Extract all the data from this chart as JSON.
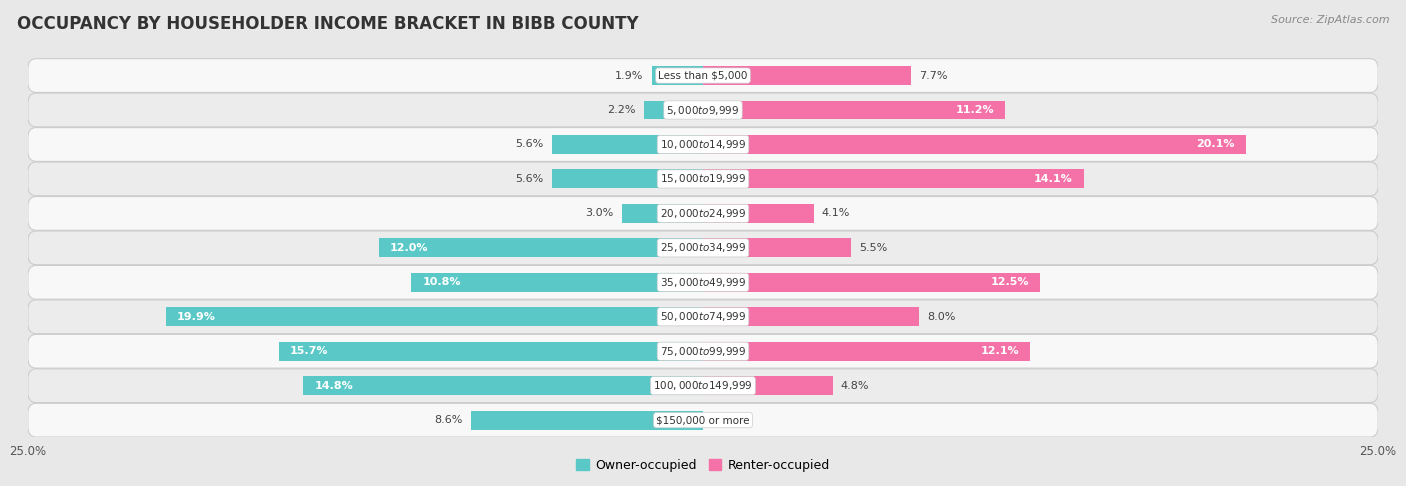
{
  "title": "OCCUPANCY BY HOUSEHOLDER INCOME BRACKET IN BIBB COUNTY",
  "source": "Source: ZipAtlas.com",
  "categories": [
    "Less than $5,000",
    "$5,000 to $9,999",
    "$10,000 to $14,999",
    "$15,000 to $19,999",
    "$20,000 to $24,999",
    "$25,000 to $34,999",
    "$35,000 to $49,999",
    "$50,000 to $74,999",
    "$75,000 to $99,999",
    "$100,000 to $149,999",
    "$150,000 or more"
  ],
  "owner_values": [
    1.9,
    2.2,
    5.6,
    5.6,
    3.0,
    12.0,
    10.8,
    19.9,
    15.7,
    14.8,
    8.6
  ],
  "renter_values": [
    7.7,
    11.2,
    20.1,
    14.1,
    4.1,
    5.5,
    12.5,
    8.0,
    12.1,
    4.8,
    0.0
  ],
  "owner_color": "#5BC8C8",
  "renter_color": "#F472A8",
  "bar_height": 0.55,
  "xlim": 25.0,
  "background_color": "#e8e8e8",
  "row_color_odd": "#f5f5f5",
  "row_color_even": "#e2e2e2",
  "title_fontsize": 12,
  "label_fontsize": 8,
  "cat_fontsize": 7.5,
  "tick_fontsize": 8.5,
  "source_fontsize": 8,
  "legend_fontsize": 9
}
